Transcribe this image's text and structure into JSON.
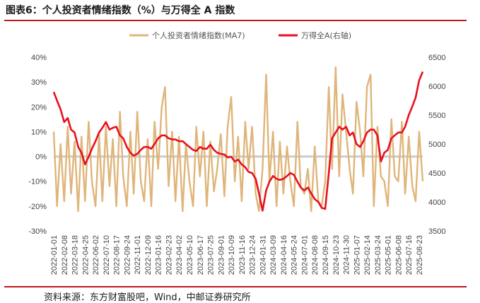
{
  "header": {
    "title": "图表6：个人投资者情绪指数（%）与万得全 A 指数"
  },
  "footer": {
    "source": "资料来源：东方财富股吧，Wind，中邮证券研究所"
  },
  "chart_data": {
    "type": "line",
    "title": "",
    "colors": {
      "sentiment": "#dfb57a",
      "index": "#e8101c",
      "zero_line": "#cccccc"
    },
    "left_axis": {
      "ticks": [
        "40%",
        "30%",
        "20%",
        "10%",
        "0%",
        "-10%",
        "-20%",
        "-30%"
      ],
      "range": [
        -30,
        40
      ]
    },
    "right_axis": {
      "ticks": [
        "6500",
        "6000",
        "5500",
        "5000",
        "4500",
        "4000",
        "3500"
      ],
      "range": [
        3500,
        6500
      ]
    },
    "x_ticks": [
      "2022-01-01",
      "2022-02-08",
      "2022-03-18",
      "2022-04-25",
      "2022-06-02",
      "2022-07-10",
      "2022-08-17",
      "2022-09-24",
      "2022-11-01",
      "2022-12-09",
      "2023-01-16",
      "2023-02-23",
      "2023-04-02",
      "2023-05-10",
      "2023-06-17",
      "2023-07-25",
      "2023-09-01",
      "2023-10-09",
      "2023-11-16",
      "2023-12-24",
      "2024-01-31",
      "2024-03-09",
      "2024-04-16",
      "2024-05-24",
      "2024-07-01",
      "2024-08-08",
      "2024-09-15",
      "2024-10-23",
      "2024-11-30",
      "2025-01-07",
      "2025-02-14",
      "2025-03-24",
      "2025-05-01",
      "2025-06-08",
      "2025-07-16",
      "2025-08-23"
    ],
    "legend": {
      "placement": "top-center"
    },
    "series": [
      {
        "name": "个人投资者情绪指数(MA7)",
        "axis": "left",
        "x": [
          "2022-01-01",
          "2022-01-13",
          "2022-01-26",
          "2022-02-08",
          "2022-02-21",
          "2022-03-05",
          "2022-03-18",
          "2022-03-31",
          "2022-04-12",
          "2022-04-25",
          "2022-05-08",
          "2022-05-20",
          "2022-06-02",
          "2022-06-15",
          "2022-06-27",
          "2022-07-10",
          "2022-07-23",
          "2022-08-04",
          "2022-08-17",
          "2022-08-30",
          "2022-09-11",
          "2022-09-24",
          "2022-10-07",
          "2022-10-19",
          "2022-11-01",
          "2022-11-14",
          "2022-11-26",
          "2022-12-09",
          "2022-12-22",
          "2023-01-03",
          "2023-01-16",
          "2023-01-29",
          "2023-02-10",
          "2023-02-23",
          "2023-03-08",
          "2023-03-20",
          "2023-04-02",
          "2023-04-15",
          "2023-04-27",
          "2023-05-10",
          "2023-05-23",
          "2023-06-04",
          "2023-06-17",
          "2023-06-30",
          "2023-07-12",
          "2023-07-25",
          "2023-08-07",
          "2023-08-19",
          "2023-09-01",
          "2023-09-14",
          "2023-09-26",
          "2023-10-09",
          "2023-10-22",
          "2023-11-03",
          "2023-11-16",
          "2023-11-29",
          "2023-12-11",
          "2023-12-24",
          "2024-01-06",
          "2024-01-18",
          "2024-01-31",
          "2024-02-13",
          "2024-02-25",
          "2024-03-09",
          "2024-03-22",
          "2024-04-03",
          "2024-04-16",
          "2024-04-29",
          "2024-05-11",
          "2024-05-24",
          "2024-06-06",
          "2024-06-18",
          "2024-07-01",
          "2024-07-14",
          "2024-07-26",
          "2024-08-08",
          "2024-08-21",
          "2024-09-02",
          "2024-09-15",
          "2024-09-28",
          "2024-10-10",
          "2024-10-23",
          "2024-11-05",
          "2024-11-17",
          "2024-11-30",
          "2024-12-13",
          "2024-12-25",
          "2025-01-07",
          "2025-01-20",
          "2025-02-01",
          "2025-02-14",
          "2025-02-27",
          "2025-03-11",
          "2025-03-24",
          "2025-04-06",
          "2025-04-18",
          "2025-05-01",
          "2025-05-14",
          "2025-05-26",
          "2025-06-08",
          "2025-06-21",
          "2025-07-03",
          "2025-07-16",
          "2025-07-29",
          "2025-08-10",
          "2025-08-23",
          "2025-09-05"
        ],
        "values": [
          10,
          -20,
          5,
          -18,
          12,
          -15,
          6,
          -22,
          8,
          -18,
          14,
          -10,
          -20,
          9,
          -18,
          12,
          -12,
          7,
          -20,
          18,
          -8,
          -20,
          10,
          -15,
          18,
          -10,
          -18,
          7,
          -20,
          14,
          -5,
          20,
          28,
          -12,
          10,
          -18,
          8,
          -22,
          5,
          -10,
          -20,
          12,
          -8,
          10,
          -20,
          6,
          -14,
          -5,
          9,
          -16,
          12,
          24,
          -10,
          8,
          -18,
          14,
          -5,
          12,
          -15,
          -22,
          -5,
          33,
          -10,
          10,
          -20,
          6,
          -15,
          4,
          -10,
          -20,
          14,
          -12,
          -15,
          -5,
          -22,
          4,
          -18,
          -20,
          -10,
          28,
          -5,
          36,
          -8,
          25,
          10,
          -5,
          -15,
          22,
          10,
          -8,
          28,
          33,
          -20,
          12,
          -8,
          -10,
          -20,
          15,
          -8,
          -10,
          14,
          -15,
          8,
          -12,
          -18,
          10,
          -10
        ]
      },
      {
        "name": "万得全A(右轴)",
        "axis": "right",
        "x": [
          "2022-01-01",
          "2022-01-13",
          "2022-01-26",
          "2022-02-08",
          "2022-02-21",
          "2022-03-05",
          "2022-03-18",
          "2022-03-31",
          "2022-04-12",
          "2022-04-25",
          "2022-05-08",
          "2022-05-20",
          "2022-06-02",
          "2022-06-15",
          "2022-06-27",
          "2022-07-10",
          "2022-07-23",
          "2022-08-04",
          "2022-08-17",
          "2022-08-30",
          "2022-09-11",
          "2022-09-24",
          "2022-10-07",
          "2022-10-19",
          "2022-11-01",
          "2022-11-14",
          "2022-11-26",
          "2022-12-09",
          "2022-12-22",
          "2023-01-03",
          "2023-01-16",
          "2023-01-29",
          "2023-02-10",
          "2023-02-23",
          "2023-03-08",
          "2023-03-20",
          "2023-04-02",
          "2023-04-15",
          "2023-04-27",
          "2023-05-10",
          "2023-05-23",
          "2023-06-04",
          "2023-06-17",
          "2023-06-30",
          "2023-07-12",
          "2023-07-25",
          "2023-08-07",
          "2023-08-19",
          "2023-09-01",
          "2023-09-14",
          "2023-09-26",
          "2023-10-09",
          "2023-10-22",
          "2023-11-03",
          "2023-11-16",
          "2023-11-29",
          "2023-12-11",
          "2023-12-24",
          "2024-01-06",
          "2024-01-18",
          "2024-01-31",
          "2024-02-13",
          "2024-02-25",
          "2024-03-09",
          "2024-03-22",
          "2024-04-03",
          "2024-04-16",
          "2024-04-29",
          "2024-05-11",
          "2024-05-24",
          "2024-06-06",
          "2024-06-18",
          "2024-07-01",
          "2024-07-14",
          "2024-07-26",
          "2024-08-08",
          "2024-08-21",
          "2024-09-02",
          "2024-09-15",
          "2024-09-28",
          "2024-10-10",
          "2024-10-23",
          "2024-11-05",
          "2024-11-17",
          "2024-11-30",
          "2024-12-13",
          "2024-12-25",
          "2025-01-07",
          "2025-01-20",
          "2025-02-01",
          "2025-02-14",
          "2025-02-27",
          "2025-03-11",
          "2025-03-24",
          "2025-04-06",
          "2025-04-18",
          "2025-05-01",
          "2025-05-14",
          "2025-05-26",
          "2025-06-08",
          "2025-06-21",
          "2025-07-03",
          "2025-07-16",
          "2025-07-29",
          "2025-08-10",
          "2025-08-23",
          "2025-09-05"
        ],
        "values": [
          5900,
          5750,
          5600,
          5380,
          5450,
          5250,
          5200,
          4950,
          4850,
          4650,
          4780,
          4920,
          5050,
          5200,
          5280,
          5380,
          5250,
          5280,
          5300,
          5150,
          5100,
          4950,
          4850,
          4800,
          4830,
          4900,
          4950,
          4950,
          4920,
          5000,
          5100,
          5150,
          5150,
          5100,
          5080,
          5080,
          5050,
          5050,
          5000,
          4950,
          4900,
          4880,
          4950,
          4920,
          4920,
          4990,
          4900,
          4850,
          4830,
          4820,
          4770,
          4780,
          4700,
          4730,
          4650,
          4600,
          4520,
          4500,
          4400,
          4150,
          3850,
          4200,
          4350,
          4450,
          4400,
          4380,
          4400,
          4450,
          4500,
          4470,
          4350,
          4250,
          4200,
          4250,
          4150,
          4050,
          4000,
          3900,
          3880,
          4500,
          5100,
          5200,
          5300,
          5250,
          5300,
          5150,
          5200,
          5000,
          4950,
          5050,
          5200,
          5250,
          5250,
          5150,
          4700,
          4850,
          4900,
          5100,
          5150,
          5200,
          5200,
          5300,
          5500,
          5650,
          5800,
          6100,
          6250
        ]
      }
    ]
  }
}
